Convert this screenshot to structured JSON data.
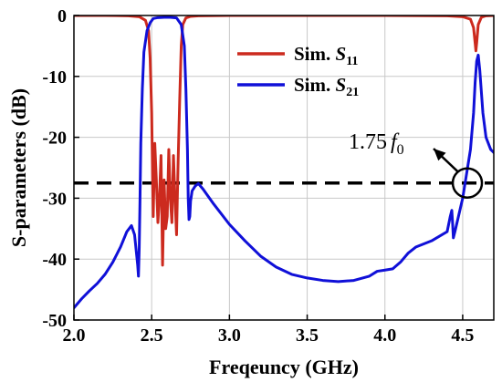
{
  "chart_data": {
    "type": "line",
    "title": "",
    "xlabel": "Freqeuncy (GHz)",
    "ylabel": "S-parameters (dB)",
    "xlim": [
      2.0,
      4.7
    ],
    "ylim": [
      -50,
      0
    ],
    "xticks": [
      "2.0",
      "2.5",
      "3.0",
      "3.5",
      "4.0",
      "4.5"
    ],
    "yticks": [
      "0",
      "-10",
      "-20",
      "-30",
      "-40",
      "-50"
    ],
    "grid": true,
    "legend_position": "top-right",
    "reference_line": {
      "y": -27.5,
      "style": "dashed",
      "color": "#000000"
    },
    "annotation": {
      "base": "1.75",
      "var": "f",
      "sub": "0",
      "target": [
        4.53,
        -27.5
      ]
    },
    "series": [
      {
        "name": "Sim. S11",
        "legend_main": "Sim. ",
        "legend_var": "S",
        "legend_sub": "11",
        "color": "#cc2a1e",
        "x": [
          2.0,
          2.2,
          2.35,
          2.42,
          2.46,
          2.48,
          2.49,
          2.5,
          2.505,
          2.51,
          2.52,
          2.53,
          2.54,
          2.55,
          2.56,
          2.57,
          2.58,
          2.59,
          2.6,
          2.61,
          2.62,
          2.63,
          2.64,
          2.65,
          2.66,
          2.67,
          2.68,
          2.69,
          2.7,
          2.72,
          2.75,
          2.8,
          3.0,
          3.5,
          4.0,
          4.4,
          4.5,
          4.55,
          4.57,
          4.58,
          4.585,
          4.59,
          4.6,
          4.62,
          4.65,
          4.7
        ],
        "y": [
          0,
          0,
          -0.05,
          -0.2,
          -0.8,
          -2.5,
          -7,
          -16,
          -25,
          -33,
          -21,
          -27,
          -34,
          -30,
          -23,
          -41,
          -27,
          -35,
          -33,
          -22,
          -30,
          -34,
          -23,
          -30,
          -36,
          -24,
          -14,
          -5,
          -1.5,
          -0.4,
          -0.15,
          -0.05,
          0,
          0,
          0,
          -0.05,
          -0.2,
          -0.6,
          -2,
          -4.5,
          -5.8,
          -4.5,
          -1.5,
          -0.3,
          -0.05,
          0
        ]
      },
      {
        "name": "Sim. S21",
        "legend_main": "Sim. ",
        "legend_var": "S",
        "legend_sub": "21",
        "color": "#1010d8",
        "x": [
          2.0,
          2.05,
          2.1,
          2.15,
          2.2,
          2.25,
          2.3,
          2.34,
          2.37,
          2.39,
          2.41,
          2.415,
          2.42,
          2.425,
          2.43,
          2.44,
          2.45,
          2.47,
          2.49,
          2.51,
          2.54,
          2.58,
          2.62,
          2.66,
          2.69,
          2.71,
          2.72,
          2.73,
          2.735,
          2.74,
          2.745,
          2.75,
          2.76,
          2.78,
          2.8,
          2.83,
          2.9,
          3.0,
          3.1,
          3.2,
          3.3,
          3.4,
          3.5,
          3.6,
          3.7,
          3.8,
          3.9,
          3.95,
          4.0,
          4.05,
          4.1,
          4.15,
          4.2,
          4.3,
          4.4,
          4.42,
          4.43,
          4.435,
          4.44,
          4.45,
          4.5,
          4.55,
          4.57,
          4.58,
          4.59,
          4.6,
          4.61,
          4.63,
          4.65,
          4.68,
          4.7
        ],
        "y": [
          -48,
          -46.5,
          -45.2,
          -44,
          -42.5,
          -40.5,
          -38,
          -35.5,
          -34.5,
          -36,
          -41,
          -42.8,
          -38,
          -30,
          -21,
          -12,
          -6,
          -2.5,
          -1.2,
          -0.5,
          -0.35,
          -0.3,
          -0.3,
          -0.4,
          -1.5,
          -5,
          -12,
          -22,
          -30,
          -33.5,
          -33,
          -30.5,
          -28.8,
          -28,
          -27.6,
          -28.5,
          -31,
          -34.3,
          -37,
          -39.5,
          -41.3,
          -42.5,
          -43.1,
          -43.5,
          -43.7,
          -43.5,
          -42.8,
          -42,
          -41.8,
          -41.6,
          -40.5,
          -39,
          -38,
          -37,
          -35.5,
          -33,
          -32,
          -34,
          -36.5,
          -35.5,
          -30,
          -22,
          -16,
          -11,
          -7.5,
          -6.5,
          -9,
          -16,
          -20,
          -22,
          -22.5
        ]
      }
    ]
  }
}
